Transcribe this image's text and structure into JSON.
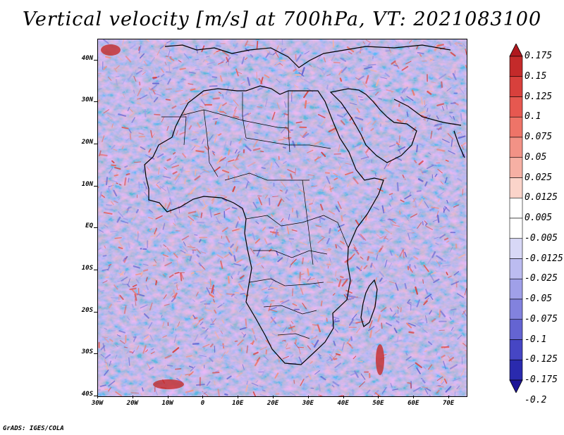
{
  "title": "Vertical velocity [m/s] at 700hPa, VT: 2021083100",
  "footer": "GrADS: IGES/COLA",
  "map": {
    "region": "Africa",
    "lon_range": [
      -30,
      75
    ],
    "lat_range": [
      -40,
      45
    ],
    "lat_labels": [
      "40N",
      "30N",
      "20N",
      "10N",
      "EQ",
      "10S",
      "20S",
      "30S",
      "40S"
    ],
    "lat_values": [
      40,
      30,
      20,
      10,
      0,
      -10,
      -20,
      -30,
      -40
    ],
    "lon_labels": [
      "30W",
      "20W",
      "10W",
      "0",
      "10E",
      "20E",
      "30E",
      "40E",
      "50E",
      "60E",
      "70E"
    ],
    "lon_values": [
      -30,
      -20,
      -10,
      0,
      10,
      20,
      30,
      40,
      50,
      60,
      70
    ]
  },
  "colorbar": {
    "labels": [
      "0.175",
      "0.15",
      "0.125",
      "0.1",
      "0.075",
      "0.05",
      "0.025",
      "0.0125",
      "0.005",
      "-0.005",
      "-0.0125",
      "-0.025",
      "-0.05",
      "-0.075",
      "-0.1",
      "-0.125",
      "-0.175",
      "-0.2"
    ],
    "colors": [
      "#b0181e",
      "#c42a2a",
      "#d8403c",
      "#e65850",
      "#ee7468",
      "#f29286",
      "#f6b0a4",
      "#fbd4ca",
      "#ffffff",
      "#ffffff",
      "#d8d8f6",
      "#bcbcf0",
      "#a0a0e8",
      "#8282de",
      "#6464d2",
      "#4646c4",
      "#2a2aae",
      "#1c1496"
    ]
  }
}
